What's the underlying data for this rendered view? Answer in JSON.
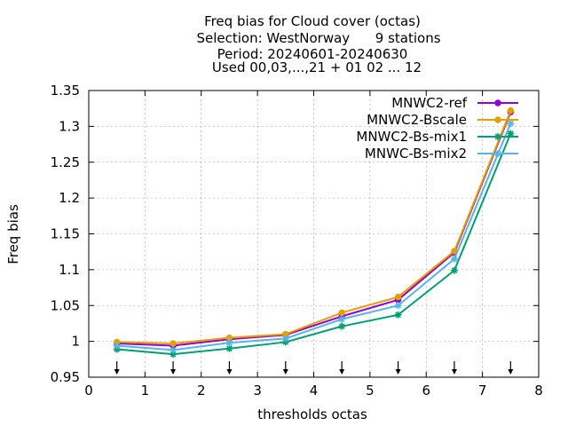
{
  "chart_data": {
    "type": "line",
    "title_lines": [
      "Freq bias  for Cloud cover (octas)",
      "Selection: WestNorway      9 stations",
      "Period: 20240601-20240630",
      "Used 00,03,...,21 + 01 02 ... 12"
    ],
    "xlabel": "thresholds octas",
    "ylabel": "Freq bias",
    "xlim": [
      0,
      8
    ],
    "ylim": [
      0.95,
      1.35
    ],
    "xticks": [
      "0",
      "1",
      "2",
      "3",
      "4",
      "5",
      "6",
      "7",
      "8"
    ],
    "yticks": [
      "0.95",
      "1",
      "1.05",
      "1.1",
      "1.15",
      "1.2",
      "1.25",
      "1.3",
      "1.35"
    ],
    "grid": true,
    "legend_position": "top-right",
    "x": [
      0.5,
      1.5,
      2.5,
      3.5,
      4.5,
      5.5,
      6.5,
      7.5
    ],
    "series": [
      {
        "name": "MNWC2-ref",
        "color": "#9400d3",
        "marker": "circle",
        "values": [
          0.997,
          0.994,
          1.003,
          1.009,
          1.035,
          1.058,
          1.124,
          1.32
        ]
      },
      {
        "name": "MNWC2-Bscale",
        "color": "#e69f00",
        "marker": "circle",
        "values": [
          0.999,
          0.997,
          1.005,
          1.01,
          1.04,
          1.062,
          1.126,
          1.322
        ]
      },
      {
        "name": "MNWC2-Bs-mix1",
        "color": "#009e73",
        "marker": "star",
        "values": [
          0.989,
          0.982,
          0.99,
          0.999,
          1.021,
          1.037,
          1.099,
          1.29
        ]
      },
      {
        "name": "MNWC-Bs-mix2",
        "color": "#56b4e9",
        "marker": "star",
        "values": [
          0.994,
          0.988,
          0.998,
          1.004,
          1.031,
          1.05,
          1.115,
          1.304
        ]
      }
    ],
    "arrow_markers_at_x": [
      0.5,
      1.5,
      2.5,
      3.5,
      4.5,
      5.5,
      6.5,
      7.5
    ]
  }
}
